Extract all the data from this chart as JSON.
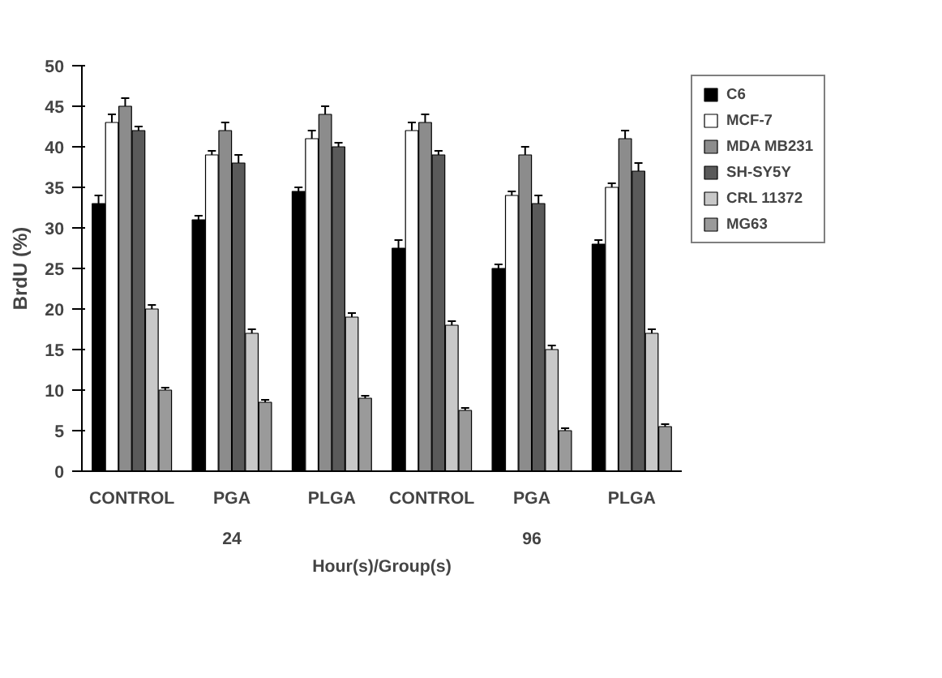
{
  "chart_data": {
    "type": "bar",
    "ylabel": "BrdU (%)",
    "xlabel": "Hour(s)/Group(s)",
    "categories": [
      "CONTROL",
      "PGA",
      "PLGA",
      "CONTROL",
      "PGA",
      "PLGA"
    ],
    "annotations": [
      "24",
      "96"
    ],
    "series": [
      {
        "name": "C6",
        "color": "#000000",
        "values": [
          33,
          31,
          34.5,
          27.5,
          25,
          28
        ],
        "errors": [
          1,
          0.5,
          0.5,
          1,
          0.5,
          0.5
        ]
      },
      {
        "name": "MCF-7",
        "color": "#ffffff",
        "values": [
          43,
          39,
          41,
          42,
          34,
          35
        ],
        "errors": [
          1,
          0.5,
          1,
          1,
          0.5,
          0.5
        ]
      },
      {
        "name": "MDA MB231",
        "color": "#8c8c8c",
        "values": [
          45,
          42,
          44,
          43,
          39,
          41
        ],
        "errors": [
          1,
          1,
          1,
          1,
          1,
          1
        ]
      },
      {
        "name": "SH-SY5Y",
        "color": "#5a5a5a",
        "values": [
          42,
          38,
          40,
          39,
          33,
          37
        ],
        "errors": [
          0.5,
          1,
          0.5,
          0.5,
          1,
          1
        ]
      },
      {
        "name": "CRL 11372",
        "color": "#c8c8c8",
        "values": [
          20,
          17,
          19,
          18,
          15,
          17
        ],
        "errors": [
          0.5,
          0.5,
          0.5,
          0.5,
          0.5,
          0.5
        ]
      },
      {
        "name": "MG63",
        "color": "#9a9a9a",
        "values": [
          10,
          8.5,
          9,
          7.5,
          5,
          5.5
        ],
        "errors": [
          0.3,
          0.3,
          0.3,
          0.3,
          0.3,
          0.3
        ]
      }
    ],
    "ylim": [
      0,
      50
    ],
    "yticks": [
      0,
      5,
      10,
      15,
      20,
      25,
      30,
      35,
      40,
      45,
      50
    ],
    "legend": "right"
  }
}
